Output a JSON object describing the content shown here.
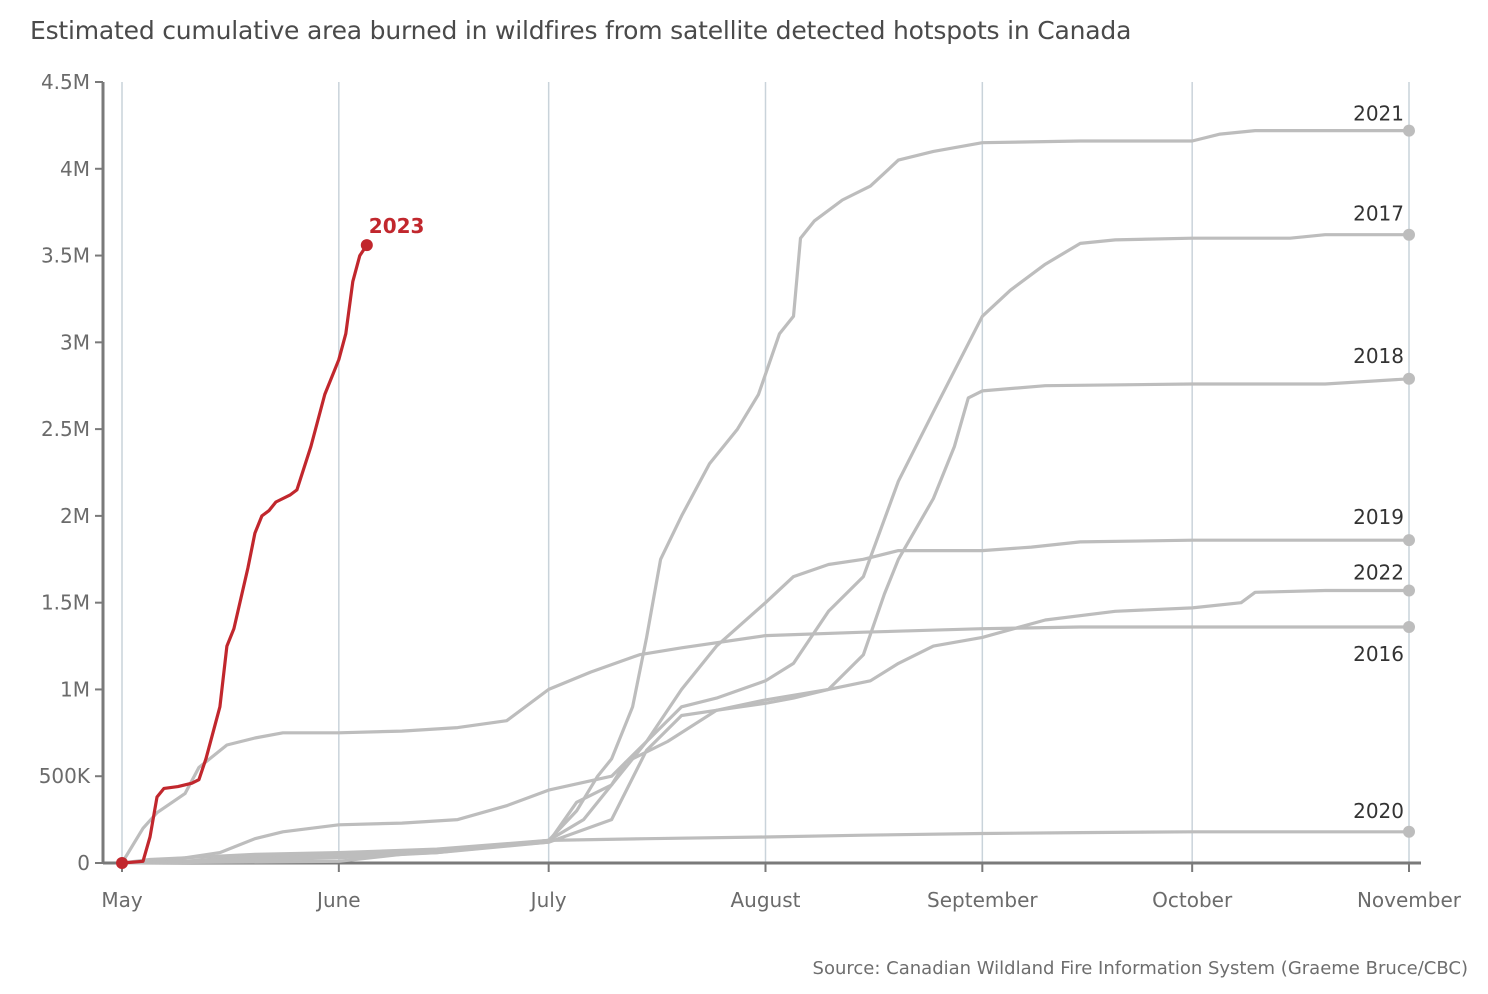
{
  "chart_data": {
    "type": "line",
    "title": "Estimated cumulative area burned in wildfires from satellite detected hotspots in Canada",
    "source": "Source: Canadian Wildland Fire Information System (Graeme Bruce/CBC)",
    "xlabel": "",
    "ylabel": "",
    "x_ticks": [
      "May",
      "June",
      "July",
      "August",
      "September",
      "October",
      "November"
    ],
    "y_ticks": [
      "0",
      "500K",
      "1M",
      "1.5M",
      "2M",
      "2.5M",
      "3M",
      "3.5M",
      "4M",
      "4.5M"
    ],
    "ylim": [
      0,
      4500000
    ],
    "xlim": [
      "2000-05-01",
      "2000-11-01"
    ],
    "grid": "vertical at month starts",
    "colors": {
      "highlight": "#c1272d",
      "other": "#bdbdbd",
      "grid": "#c9d3da",
      "axis": "#7a7a7a"
    },
    "series": [
      {
        "name": "2023",
        "highlight": true,
        "points": [
          [
            "05-01",
            0
          ],
          [
            "05-04",
            10000
          ],
          [
            "05-05",
            150000
          ],
          [
            "05-06",
            380000
          ],
          [
            "05-07",
            430000
          ],
          [
            "05-09",
            440000
          ],
          [
            "05-11",
            460000
          ],
          [
            "05-12",
            480000
          ],
          [
            "05-13",
            600000
          ],
          [
            "05-15",
            900000
          ],
          [
            "05-16",
            1250000
          ],
          [
            "05-17",
            1350000
          ],
          [
            "05-19",
            1700000
          ],
          [
            "05-20",
            1900000
          ],
          [
            "05-21",
            2000000
          ],
          [
            "05-22",
            2030000
          ],
          [
            "05-23",
            2080000
          ],
          [
            "05-25",
            2120000
          ],
          [
            "05-26",
            2150000
          ],
          [
            "05-28",
            2400000
          ],
          [
            "05-30",
            2700000
          ],
          [
            "06-01",
            2900000
          ],
          [
            "06-02",
            3050000
          ],
          [
            "06-03",
            3350000
          ],
          [
            "06-04",
            3500000
          ],
          [
            "06-05",
            3560000
          ]
        ]
      },
      {
        "name": "2021",
        "points": [
          [
            "05-01",
            0
          ],
          [
            "06-01",
            10000
          ],
          [
            "06-10",
            50000
          ],
          [
            "06-20",
            80000
          ],
          [
            "07-01",
            130000
          ],
          [
            "07-05",
            300000
          ],
          [
            "07-08",
            500000
          ],
          [
            "07-10",
            600000
          ],
          [
            "07-13",
            900000
          ],
          [
            "07-15",
            1300000
          ],
          [
            "07-17",
            1750000
          ],
          [
            "07-20",
            2000000
          ],
          [
            "07-24",
            2300000
          ],
          [
            "07-28",
            2500000
          ],
          [
            "07-31",
            2700000
          ],
          [
            "08-03",
            3050000
          ],
          [
            "08-05",
            3150000
          ],
          [
            "08-06",
            3600000
          ],
          [
            "08-08",
            3700000
          ],
          [
            "08-12",
            3820000
          ],
          [
            "08-16",
            3900000
          ],
          [
            "08-20",
            4050000
          ],
          [
            "08-25",
            4100000
          ],
          [
            "09-01",
            4150000
          ],
          [
            "09-15",
            4160000
          ],
          [
            "10-01",
            4160000
          ],
          [
            "10-05",
            4200000
          ],
          [
            "10-10",
            4220000
          ],
          [
            "11-01",
            4220000
          ]
        ]
      },
      {
        "name": "2017",
        "points": [
          [
            "05-01",
            0
          ],
          [
            "05-10",
            30000
          ],
          [
            "05-20",
            50000
          ],
          [
            "06-01",
            60000
          ],
          [
            "06-15",
            80000
          ],
          [
            "07-01",
            130000
          ],
          [
            "07-06",
            250000
          ],
          [
            "07-10",
            450000
          ],
          [
            "07-15",
            700000
          ],
          [
            "07-20",
            900000
          ],
          [
            "07-25",
            950000
          ],
          [
            "08-01",
            1050000
          ],
          [
            "08-05",
            1150000
          ],
          [
            "08-10",
            1450000
          ],
          [
            "08-15",
            1650000
          ],
          [
            "08-20",
            2200000
          ],
          [
            "08-25",
            2600000
          ],
          [
            "09-01",
            3150000
          ],
          [
            "09-05",
            3300000
          ],
          [
            "09-10",
            3450000
          ],
          [
            "09-15",
            3570000
          ],
          [
            "09-20",
            3590000
          ],
          [
            "10-01",
            3600000
          ],
          [
            "10-15",
            3600000
          ],
          [
            "10-20",
            3620000
          ],
          [
            "11-01",
            3620000
          ]
        ]
      },
      {
        "name": "2018",
        "points": [
          [
            "05-01",
            0
          ],
          [
            "05-10",
            10000
          ],
          [
            "05-20",
            40000
          ],
          [
            "06-01",
            50000
          ],
          [
            "06-15",
            70000
          ],
          [
            "07-01",
            120000
          ],
          [
            "07-10",
            250000
          ],
          [
            "07-15",
            650000
          ],
          [
            "07-20",
            850000
          ],
          [
            "07-25",
            880000
          ],
          [
            "08-01",
            920000
          ],
          [
            "08-05",
            950000
          ],
          [
            "08-10",
            1000000
          ],
          [
            "08-15",
            1200000
          ],
          [
            "08-18",
            1550000
          ],
          [
            "08-20",
            1750000
          ],
          [
            "08-25",
            2100000
          ],
          [
            "08-28",
            2400000
          ],
          [
            "08-30",
            2680000
          ],
          [
            "09-01",
            2720000
          ],
          [
            "09-10",
            2750000
          ],
          [
            "10-01",
            2760000
          ],
          [
            "10-20",
            2760000
          ],
          [
            "11-01",
            2790000
          ]
        ]
      },
      {
        "name": "2019",
        "points": [
          [
            "05-01",
            0
          ],
          [
            "05-05",
            20000
          ],
          [
            "05-10",
            30000
          ],
          [
            "05-15",
            60000
          ],
          [
            "05-20",
            140000
          ],
          [
            "05-24",
            180000
          ],
          [
            "06-01",
            220000
          ],
          [
            "06-10",
            230000
          ],
          [
            "06-18",
            250000
          ],
          [
            "06-25",
            330000
          ],
          [
            "07-01",
            420000
          ],
          [
            "07-10",
            500000
          ],
          [
            "07-15",
            700000
          ],
          [
            "07-20",
            1000000
          ],
          [
            "07-25",
            1250000
          ],
          [
            "08-01",
            1500000
          ],
          [
            "08-05",
            1650000
          ],
          [
            "08-10",
            1720000
          ],
          [
            "08-15",
            1750000
          ],
          [
            "08-20",
            1800000
          ],
          [
            "09-01",
            1800000
          ],
          [
            "09-08",
            1820000
          ],
          [
            "09-15",
            1850000
          ],
          [
            "10-01",
            1860000
          ],
          [
            "11-01",
            1860000
          ]
        ]
      },
      {
        "name": "2022",
        "points": [
          [
            "05-01",
            0
          ],
          [
            "06-01",
            40000
          ],
          [
            "06-15",
            60000
          ],
          [
            "07-01",
            120000
          ],
          [
            "07-05",
            350000
          ],
          [
            "07-10",
            450000
          ],
          [
            "07-12",
            580000
          ],
          [
            "07-18",
            700000
          ],
          [
            "07-25",
            880000
          ],
          [
            "08-01",
            940000
          ],
          [
            "08-10",
            1000000
          ],
          [
            "08-16",
            1050000
          ],
          [
            "08-20",
            1150000
          ],
          [
            "08-25",
            1250000
          ],
          [
            "09-01",
            1300000
          ],
          [
            "09-10",
            1400000
          ],
          [
            "09-20",
            1450000
          ],
          [
            "10-01",
            1470000
          ],
          [
            "10-08",
            1500000
          ],
          [
            "10-10",
            1560000
          ],
          [
            "10-20",
            1570000
          ],
          [
            "11-01",
            1570000
          ]
        ]
      },
      {
        "name": "2016",
        "points": [
          [
            "05-01",
            0
          ],
          [
            "05-04",
            200000
          ],
          [
            "05-06",
            290000
          ],
          [
            "05-10",
            400000
          ],
          [
            "05-12",
            550000
          ],
          [
            "05-16",
            680000
          ],
          [
            "05-20",
            720000
          ],
          [
            "05-24",
            750000
          ],
          [
            "06-01",
            750000
          ],
          [
            "06-10",
            760000
          ],
          [
            "06-18",
            780000
          ],
          [
            "06-25",
            820000
          ],
          [
            "07-01",
            1000000
          ],
          [
            "07-07",
            1100000
          ],
          [
            "07-14",
            1200000
          ],
          [
            "07-20",
            1240000
          ],
          [
            "08-01",
            1310000
          ],
          [
            "08-15",
            1330000
          ],
          [
            "09-01",
            1350000
          ],
          [
            "09-15",
            1360000
          ],
          [
            "11-01",
            1360000
          ]
        ]
      },
      {
        "name": "2020",
        "points": [
          [
            "05-01",
            0
          ],
          [
            "05-10",
            10000
          ],
          [
            "06-01",
            30000
          ],
          [
            "06-15",
            60000
          ],
          [
            "07-01",
            130000
          ],
          [
            "07-15",
            140000
          ],
          [
            "08-01",
            150000
          ],
          [
            "08-15",
            160000
          ],
          [
            "09-01",
            170000
          ],
          [
            "09-15",
            175000
          ],
          [
            "10-01",
            180000
          ],
          [
            "11-01",
            180000
          ]
        ]
      }
    ]
  }
}
